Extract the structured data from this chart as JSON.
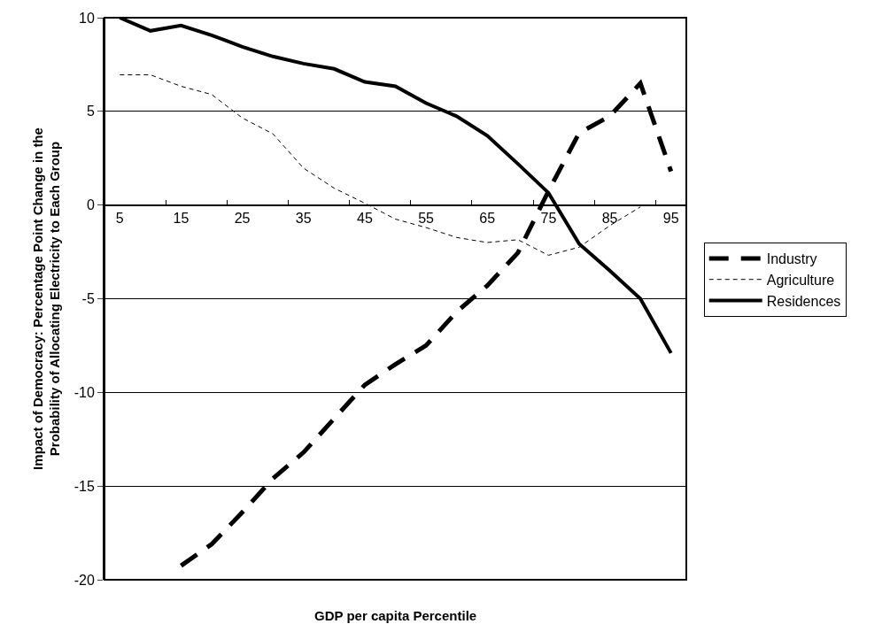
{
  "chart_data": {
    "type": "line",
    "xlabel": "GDP per capita Percentile",
    "ylabel": "Impact of Democracy: Percentage Point Change in the\nProbability of Allocating Electricity to Each Group",
    "categories": [
      "5",
      null,
      "15",
      null,
      "25",
      null,
      "35",
      null,
      "45",
      null,
      "55",
      null,
      "65",
      null,
      "75",
      null,
      "85",
      null,
      "95"
    ],
    "series": [
      {
        "name": "Industry",
        "color": "#000000",
        "line_style": "dashed",
        "values": [
          null,
          null,
          -19.25,
          -18.1,
          -16.4,
          -14.6,
          -13.2,
          -11.4,
          -9.6,
          -8.5,
          -7.5,
          -5.7,
          -4.3,
          -2.55,
          0.75,
          3.85,
          4.74,
          6.5,
          1.8
        ]
      },
      {
        "name": "Agriculture",
        "color": "#000000",
        "line_style": "dashed",
        "values": [
          6.95,
          6.95,
          6.34,
          5.9,
          4.65,
          3.8,
          1.97,
          0.9,
          0.1,
          -0.75,
          -1.2,
          -1.73,
          -2.0,
          -1.85,
          -2.68,
          -2.25,
          -1.1,
          -0.1,
          null
        ]
      },
      {
        "name": "Residences",
        "color": "#000000",
        "line_style": "solid",
        "values": [
          10,
          9.3,
          9.58,
          9.06,
          8.45,
          7.93,
          7.55,
          7.27,
          6.57,
          6.34,
          5.44,
          4.74,
          3.7,
          2.2,
          0.65,
          -2.07,
          -3.5,
          -5.0,
          -7.9
        ]
      }
    ],
    "ylim": [
      -20,
      10
    ],
    "yticks": [
      -20,
      -15,
      -10,
      -5,
      0,
      5,
      10
    ],
    "grid": "y",
    "legend": "right",
    "marker": "none"
  }
}
